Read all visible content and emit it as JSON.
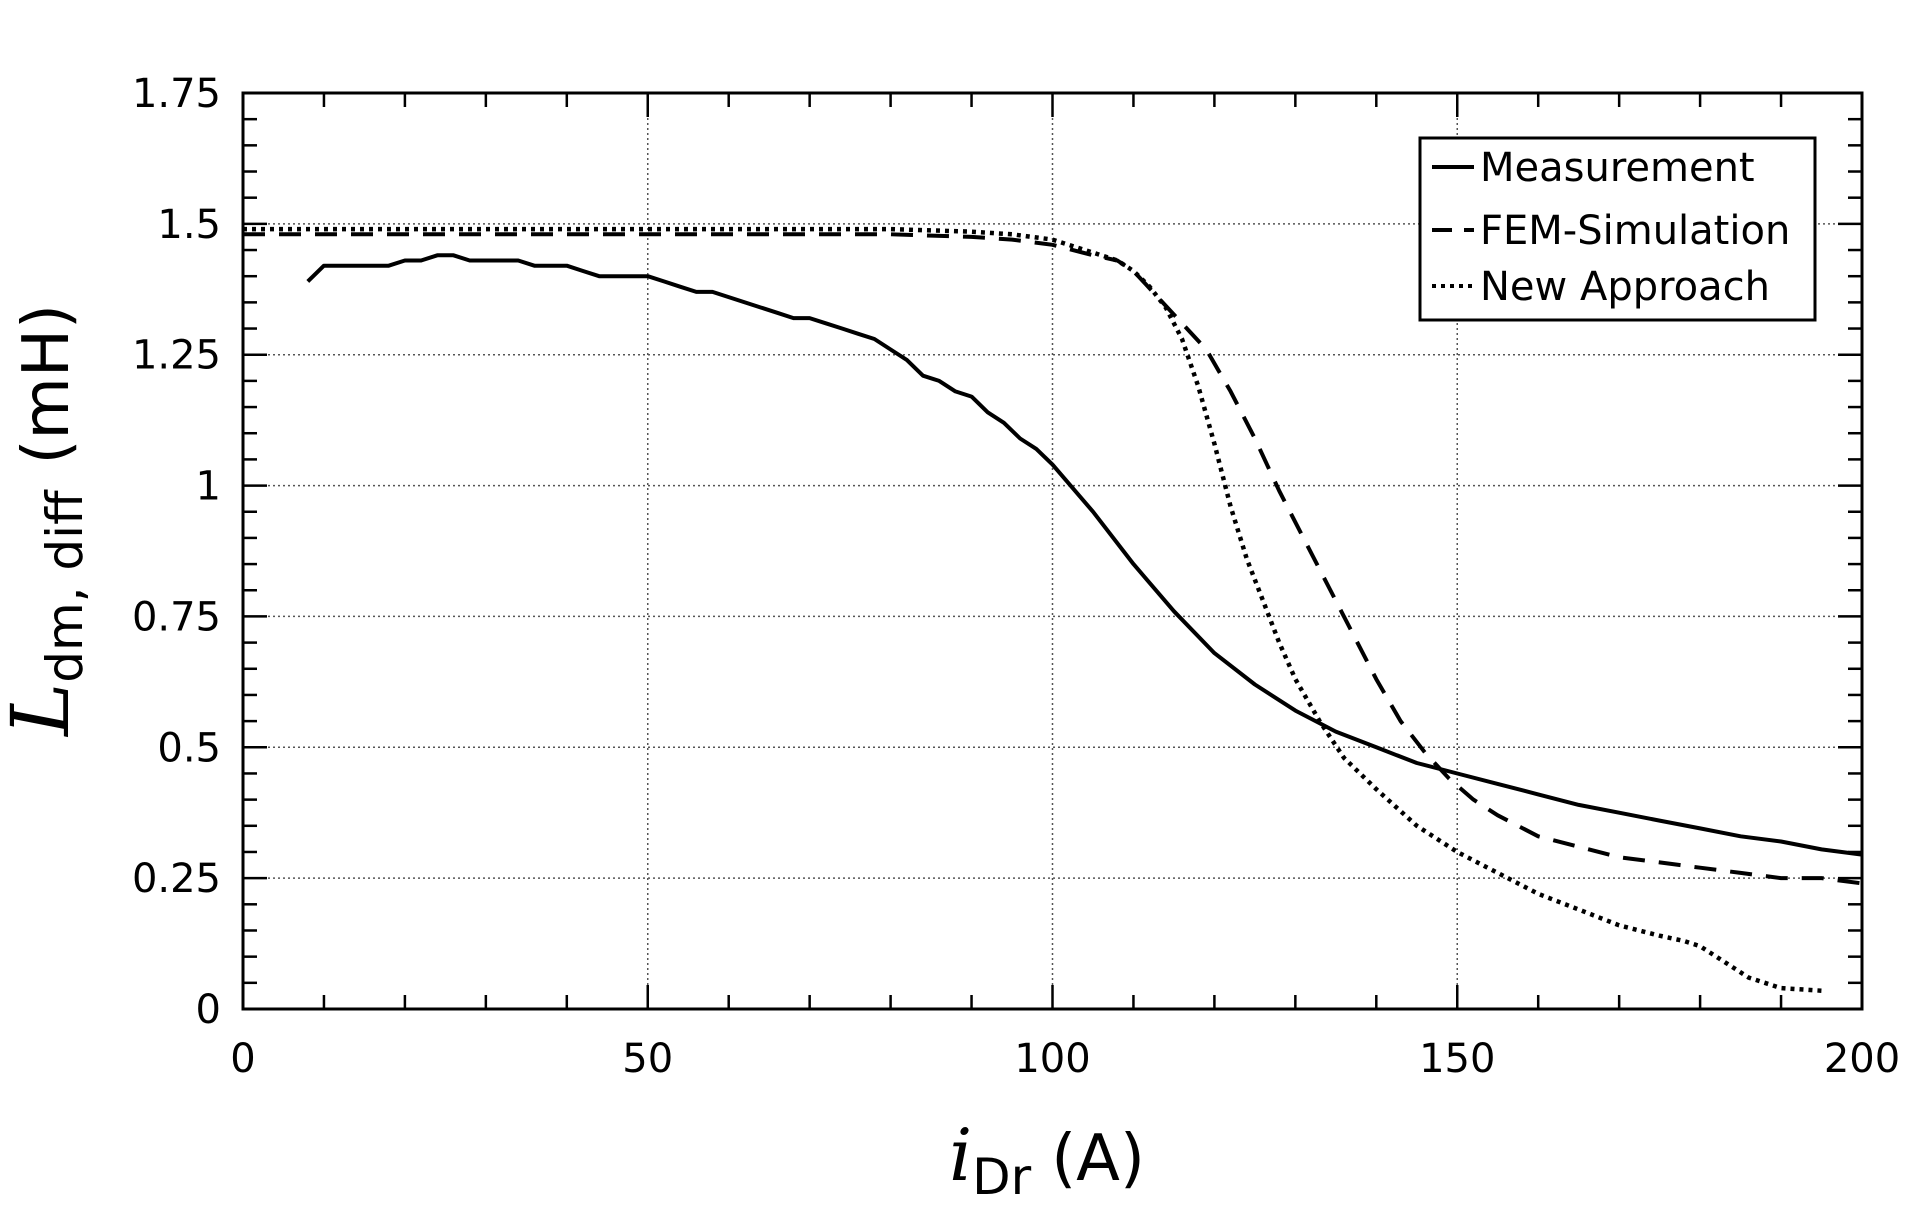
{
  "chart_data": {
    "type": "line",
    "title": "",
    "xlabel_symbol": "i",
    "xlabel_subscript": "Dr",
    "xlabel_unit": "(A)",
    "ylabel_symbol": "L",
    "ylabel_subscript": "dm, diff",
    "ylabel_unit": "(mH)",
    "xlim": [
      0,
      200
    ],
    "ylim": [
      0,
      1.75
    ],
    "x_ticks": [
      0,
      50,
      100,
      150,
      200
    ],
    "x_tick_labels": [
      "0",
      "50",
      "100",
      "150",
      "200"
    ],
    "y_ticks": [
      0,
      0.25,
      0.5,
      0.75,
      1,
      1.25,
      1.5,
      1.75
    ],
    "y_tick_labels": [
      "0",
      "0.25",
      "0.5",
      "0.75",
      "1",
      "1.25",
      "1.5",
      "1.75"
    ],
    "grid": true,
    "legend_position": "top-right",
    "series": [
      {
        "name": "Measurement",
        "style": "solid",
        "x": [
          8,
          10,
          12,
          14,
          16,
          18,
          20,
          22,
          24,
          26,
          28,
          30,
          32,
          34,
          36,
          38,
          40,
          42,
          44,
          46,
          48,
          50,
          52,
          54,
          56,
          58,
          60,
          62,
          64,
          66,
          68,
          70,
          72,
          74,
          76,
          78,
          80,
          82,
          84,
          86,
          88,
          90,
          92,
          94,
          96,
          98,
          100,
          105,
          110,
          115,
          120,
          125,
          130,
          135,
          140,
          145,
          150,
          155,
          160,
          165,
          170,
          175,
          180,
          185,
          190,
          195,
          200
        ],
        "y": [
          1.39,
          1.42,
          1.42,
          1.42,
          1.42,
          1.42,
          1.43,
          1.43,
          1.44,
          1.44,
          1.43,
          1.43,
          1.43,
          1.43,
          1.42,
          1.42,
          1.42,
          1.41,
          1.4,
          1.4,
          1.4,
          1.4,
          1.39,
          1.38,
          1.37,
          1.37,
          1.36,
          1.35,
          1.34,
          1.33,
          1.32,
          1.32,
          1.31,
          1.3,
          1.29,
          1.28,
          1.26,
          1.24,
          1.21,
          1.2,
          1.18,
          1.17,
          1.14,
          1.12,
          1.09,
          1.07,
          1.04,
          0.95,
          0.85,
          0.76,
          0.68,
          0.62,
          0.57,
          0.53,
          0.5,
          0.47,
          0.45,
          0.43,
          0.41,
          0.39,
          0.375,
          0.36,
          0.345,
          0.33,
          0.32,
          0.305,
          0.295
        ]
      },
      {
        "name": "FEM-Simulation",
        "style": "dashed",
        "x": [
          0,
          10,
          20,
          30,
          40,
          50,
          60,
          70,
          80,
          90,
          95,
          100,
          105,
          108,
          110,
          113,
          116,
          119,
          122,
          125,
          128,
          131,
          134,
          137,
          140,
          143,
          146,
          149,
          152,
          155,
          160,
          165,
          170,
          175,
          180,
          185,
          190,
          195,
          200
        ],
        "y": [
          1.48,
          1.48,
          1.48,
          1.48,
          1.48,
          1.48,
          1.48,
          1.48,
          1.48,
          1.475,
          1.47,
          1.46,
          1.44,
          1.43,
          1.41,
          1.36,
          1.31,
          1.26,
          1.18,
          1.09,
          0.99,
          0.9,
          0.81,
          0.72,
          0.63,
          0.55,
          0.49,
          0.44,
          0.4,
          0.37,
          0.33,
          0.31,
          0.29,
          0.28,
          0.27,
          0.26,
          0.25,
          0.25,
          0.24
        ]
      },
      {
        "name": "New Approach",
        "style": "dotted",
        "x": [
          0,
          10,
          20,
          30,
          40,
          50,
          60,
          70,
          80,
          90,
          95,
          100,
          104,
          108,
          110,
          112,
          114,
          116,
          118,
          120,
          122,
          124,
          126,
          128,
          130,
          133,
          136,
          140,
          145,
          150,
          155,
          160,
          165,
          170,
          175,
          178,
          180,
          183,
          186,
          190,
          195
        ],
        "y": [
          1.49,
          1.49,
          1.49,
          1.49,
          1.49,
          1.49,
          1.49,
          1.49,
          1.49,
          1.485,
          1.48,
          1.47,
          1.45,
          1.43,
          1.41,
          1.38,
          1.34,
          1.28,
          1.19,
          1.08,
          0.96,
          0.86,
          0.78,
          0.7,
          0.63,
          0.55,
          0.48,
          0.42,
          0.35,
          0.3,
          0.26,
          0.22,
          0.19,
          0.16,
          0.14,
          0.13,
          0.12,
          0.09,
          0.06,
          0.04,
          0.035
        ]
      }
    ]
  }
}
